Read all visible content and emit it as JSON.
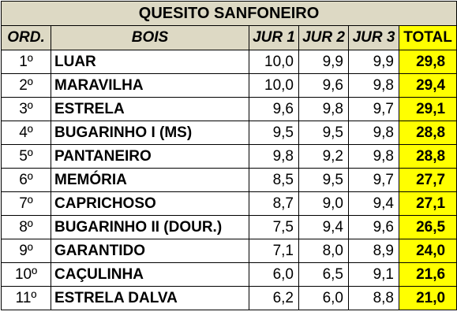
{
  "title": "QUESITO SANFONEIRO",
  "headers": {
    "ord": "ORD.",
    "bois": "BOIS",
    "jur1": "JUR 1",
    "jur2": "JUR 2",
    "jur3": "JUR 3",
    "total": "TOTAL"
  },
  "rows": [
    {
      "ord": "1º",
      "name": "LUAR",
      "jur1": "10,0",
      "jur2": "9,9",
      "jur3": "9,9",
      "total": "29,8"
    },
    {
      "ord": "2º",
      "name": "MARAVILHA",
      "jur1": "10,0",
      "jur2": "9,6",
      "jur3": "9,8",
      "total": "29,4"
    },
    {
      "ord": "3º",
      "name": "ESTRELA",
      "jur1": "9,6",
      "jur2": "9,8",
      "jur3": "9,7",
      "total": "29,1"
    },
    {
      "ord": "4º",
      "name": "BUGARINHO I (MS)",
      "jur1": "9,5",
      "jur2": "9,5",
      "jur3": "9,8",
      "total": "28,8"
    },
    {
      "ord": "5º",
      "name": "PANTANEIRO",
      "jur1": "9,8",
      "jur2": "9,2",
      "jur3": "9,8",
      "total": "28,8"
    },
    {
      "ord": "6º",
      "name": "MEMÓRIA",
      "jur1": "8,5",
      "jur2": "9,5",
      "jur3": "9,7",
      "total": "27,7"
    },
    {
      "ord": "7º",
      "name": "CAPRICHOSO",
      "jur1": "8,7",
      "jur2": "9,0",
      "jur3": "9,4",
      "total": "27,1"
    },
    {
      "ord": "8º",
      "name": "BUGARINHO II (DOUR.)",
      "jur1": "7,5",
      "jur2": "9,4",
      "jur3": "9,6",
      "total": "26,5"
    },
    {
      "ord": "9º",
      "name": "GARANTIDO",
      "jur1": "7,1",
      "jur2": "8,0",
      "jur3": "8,9",
      "total": "24,0"
    },
    {
      "ord": "10º",
      "name": "CAÇULINHA",
      "jur1": "6,0",
      "jur2": "6,5",
      "jur3": "9,1",
      "total": "21,6"
    },
    {
      "ord": "11º",
      "name": "ESTRELA DALVA",
      "jur1": "6,2",
      "jur2": "6,0",
      "jur3": "8,8",
      "total": "21,0"
    }
  ],
  "colors": {
    "header_bg": "#ddd9c4",
    "total_bg": "#ffff00",
    "border": "#000000"
  }
}
